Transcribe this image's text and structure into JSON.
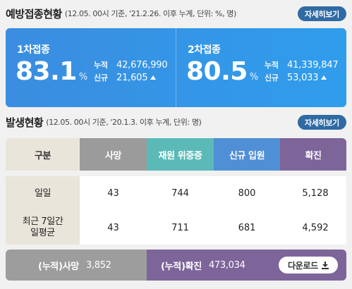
{
  "vaccination": {
    "title": "예방접종현황",
    "note": "(12.05. 00시 기준, '21.2.26. 이후 누계, 단위: %, 명)",
    "more_label": "자세히보기",
    "doses": [
      {
        "label": "1차접종",
        "rate": "83.1",
        "unit": "%",
        "cum_label": "누적",
        "cum_value": "42,676,990",
        "new_label": "신규",
        "new_value": "21,605",
        "trend": "up-arrow-icon"
      },
      {
        "label": "2차접종",
        "rate": "80.5",
        "unit": "%",
        "cum_label": "누적",
        "cum_value": "41,339,847",
        "new_label": "신규",
        "new_value": "53,033",
        "trend": "up-arrow-icon"
      }
    ]
  },
  "occurrence": {
    "title": "발생현황",
    "note": "(12.05. 00시 기준, '20.1.3. 이후 누계, 단위: 명)",
    "more_label": "자세히보기",
    "headers": [
      "구분",
      "사망",
      "재원 위중증",
      "신규 입원",
      "확진"
    ],
    "rows": [
      {
        "label": "일일",
        "values": [
          "43",
          "744",
          "800",
          "5,128"
        ]
      },
      {
        "label": "최근 7일간 일평균",
        "values": [
          "43",
          "711",
          "681",
          "4,592"
        ]
      }
    ]
  },
  "summary": {
    "death_label": "(누적)사망",
    "death_value": "3,852",
    "confirmed_label": "(누적)확진",
    "confirmed_value": "473,034",
    "download_label": "다운로드"
  },
  "colors": {
    "vaccine_card": "#3b8de0",
    "more_button": "#2f6aa3",
    "death": "#9b9b9b",
    "icu": "#5bbab8",
    "hospitalized": "#4f8fd6",
    "confirmed": "#7d659a",
    "label_bg": "#e9e5db"
  }
}
